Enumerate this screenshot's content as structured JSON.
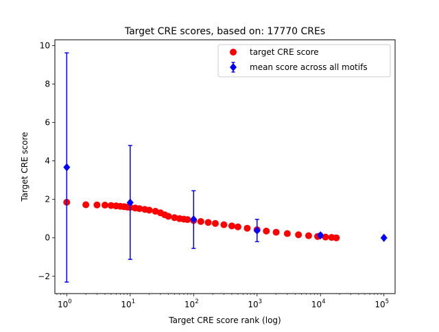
{
  "chart_data": {
    "type": "scatter",
    "title": "Target CRE scores, based on: 17770 CREs",
    "xlabel": "Target CRE score rank (log)",
    "ylabel": "Target CRE score",
    "xscale": "log",
    "xlim": [
      0.65,
      150000
    ],
    "ylim": [
      -2.9,
      10.3
    ],
    "grid": false,
    "legend_position": "top-right",
    "x_ticks": [
      {
        "value": 1,
        "mant": "10",
        "exp": "0"
      },
      {
        "value": 10,
        "mant": "10",
        "exp": "1"
      },
      {
        "value": 100,
        "mant": "10",
        "exp": "2"
      },
      {
        "value": 1000,
        "mant": "10",
        "exp": "3"
      },
      {
        "value": 10000,
        "mant": "10",
        "exp": "4"
      },
      {
        "value": 100000,
        "mant": "10",
        "exp": "5"
      }
    ],
    "y_ticks": [
      {
        "value": -2,
        "label": "−2"
      },
      {
        "value": 0,
        "label": "0"
      },
      {
        "value": 2,
        "label": "2"
      },
      {
        "value": 4,
        "label": "4"
      },
      {
        "value": 6,
        "label": "6"
      },
      {
        "value": 8,
        "label": "8"
      },
      {
        "value": 10,
        "label": "10"
      }
    ],
    "series": [
      {
        "name": "target CRE score",
        "color": "#ff0000",
        "marker": "circle",
        "points": [
          [
            1,
            1.85
          ],
          [
            2,
            1.72
          ],
          [
            3,
            1.71
          ],
          [
            4,
            1.7
          ],
          [
            5,
            1.68
          ],
          [
            6,
            1.66
          ],
          [
            7,
            1.64
          ],
          [
            8,
            1.62
          ],
          [
            9,
            1.6
          ],
          [
            10,
            1.58
          ],
          [
            12,
            1.55
          ],
          [
            14,
            1.52
          ],
          [
            17,
            1.48
          ],
          [
            20,
            1.44
          ],
          [
            25,
            1.38
          ],
          [
            30,
            1.3
          ],
          [
            35,
            1.2
          ],
          [
            40,
            1.12
          ],
          [
            50,
            1.05
          ],
          [
            60,
            1.0
          ],
          [
            70,
            0.97
          ],
          [
            80,
            0.95
          ],
          [
            100,
            0.9
          ],
          [
            130,
            0.85
          ],
          [
            170,
            0.8
          ],
          [
            220,
            0.75
          ],
          [
            300,
            0.68
          ],
          [
            400,
            0.62
          ],
          [
            500,
            0.57
          ],
          [
            700,
            0.5
          ],
          [
            1000,
            0.42
          ],
          [
            1400,
            0.35
          ],
          [
            2000,
            0.29
          ],
          [
            3000,
            0.22
          ],
          [
            4500,
            0.16
          ],
          [
            6500,
            0.11
          ],
          [
            9000,
            0.07
          ],
          [
            12000,
            0.04
          ],
          [
            15000,
            0.02
          ],
          [
            17770,
            0.0
          ]
        ]
      },
      {
        "name": "mean score across all motifs",
        "color": "#0000ff",
        "marker": "diamond",
        "errorbars": true,
        "points": [
          {
            "x": 1,
            "y": 3.67,
            "lo": -2.3,
            "hi": 9.62
          },
          {
            "x": 10,
            "y": 1.83,
            "lo": -1.12,
            "hi": 4.8
          },
          {
            "x": 100,
            "y": 0.96,
            "lo": -0.55,
            "hi": 2.45
          },
          {
            "x": 1000,
            "y": 0.38,
            "lo": -0.2,
            "hi": 0.96
          },
          {
            "x": 10000,
            "y": 0.13,
            "lo": 0.02,
            "hi": 0.24
          },
          {
            "x": 100000,
            "y": 0.0,
            "lo": 0.0,
            "hi": 0.0
          }
        ]
      }
    ]
  }
}
